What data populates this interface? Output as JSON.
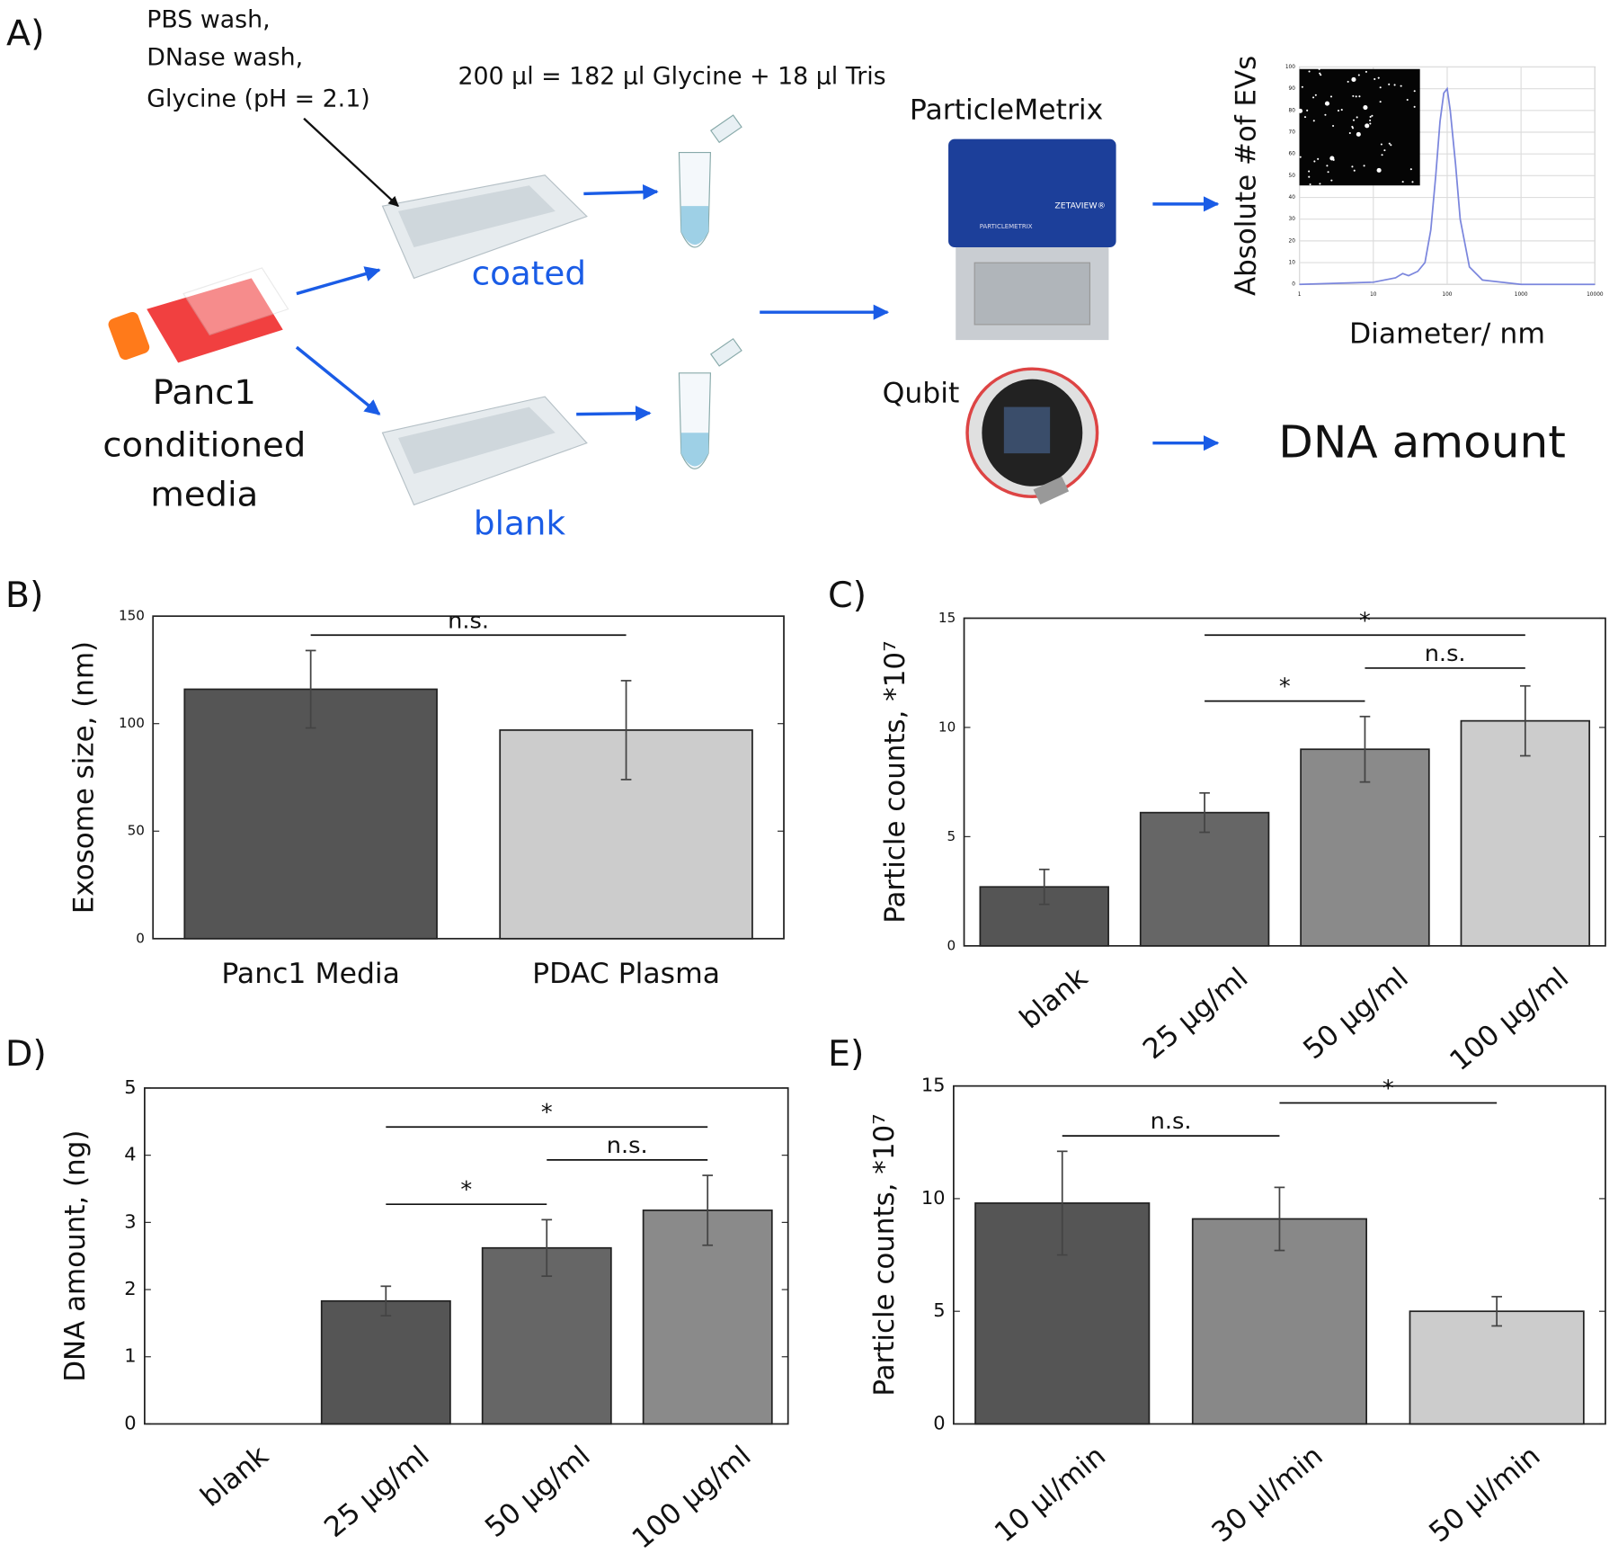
{
  "panel_a": {
    "label": "A)",
    "wash_steps": [
      "PBS wash,",
      "DNase wash,",
      "Glycine (pH = 2.1)"
    ],
    "elution": "200 µl = 182 µl Glycine + 18 µl Tris",
    "instrument": "ParticleMetrix",
    "instrument_brand": "ZETAVIEW®",
    "instrument_maker": "PARTICLEMETRIX",
    "coated": "coated",
    "blank": "blank",
    "sample": [
      "Panc1",
      "conditioned",
      "media"
    ],
    "qubit": "Qubit",
    "output": "DNA amount"
  },
  "chart_data": [
    {
      "type": "line",
      "xscale": "log",
      "xlabel": "Diameter/ nm",
      "ylabel": "Absolute #of EVs",
      "x": [
        1,
        10,
        20,
        25,
        30,
        40,
        50,
        60,
        70,
        80,
        90,
        100,
        110,
        130,
        150,
        200,
        300,
        1000,
        10000
      ],
      "values": [
        0,
        1,
        3,
        5,
        4,
        6,
        10,
        25,
        50,
        75,
        88,
        90,
        80,
        55,
        30,
        8,
        2,
        0,
        0
      ],
      "color": "#7b86dd",
      "xlim": [
        1,
        10000
      ],
      "xticks": [
        1,
        10,
        100,
        1000,
        10000
      ],
      "ylim": [
        0,
        100
      ],
      "yticks": [
        0,
        10,
        20,
        30,
        40,
        50,
        60,
        70,
        80,
        90,
        100
      ],
      "grid": true
    },
    {
      "type": "bar",
      "panel": "B)",
      "ylabel": "Exosome size, (nm)",
      "categories": [
        "Panc1 Media",
        "PDAC Plasma"
      ],
      "values": [
        116,
        97
      ],
      "errors": [
        18,
        23
      ],
      "colors": [
        "#555555",
        "#cccccc"
      ],
      "ylim": [
        0,
        150
      ],
      "yticks": [
        0,
        50,
        100,
        150
      ],
      "brackets": [
        {
          "pair": [
            0,
            1
          ],
          "label": "n.s."
        }
      ]
    },
    {
      "type": "bar",
      "panel": "C)",
      "ylabel": "Particle counts, *10⁷",
      "categories": [
        "blank",
        "25 µg/ml",
        "50 µg/ml",
        "100 µg/ml"
      ],
      "values": [
        2.7,
        6.1,
        9.0,
        10.3
      ],
      "errors": [
        0.8,
        0.9,
        1.5,
        1.6
      ],
      "colors": [
        "#555555",
        "#666666",
        "#8a8a8a",
        "#cccccc"
      ],
      "ylim": [
        0,
        15
      ],
      "yticks": [
        0,
        5,
        10,
        15
      ],
      "brackets": [
        {
          "pair": [
            1,
            2
          ],
          "label": "*"
        },
        {
          "pair": [
            2,
            3
          ],
          "label": "n.s."
        },
        {
          "pair": [
            1,
            3
          ],
          "label": "*"
        }
      ]
    },
    {
      "type": "bar",
      "panel": "D)",
      "ylabel": "DNA amount, (ng)",
      "categories": [
        "blank",
        "25 µg/ml",
        "50 µg/ml",
        "100 µg/ml"
      ],
      "values": [
        0,
        1.83,
        2.62,
        3.18
      ],
      "errors": [
        null,
        0.22,
        0.42,
        0.52
      ],
      "colors": [
        "#555555",
        "#555555",
        "#666666",
        "#8a8a8a"
      ],
      "ylim": [
        0,
        5
      ],
      "yticks": [
        0,
        1,
        2,
        3,
        4,
        5
      ],
      "brackets": [
        {
          "pair": [
            1,
            2
          ],
          "label": "*"
        },
        {
          "pair": [
            2,
            3
          ],
          "label": "n.s."
        },
        {
          "pair": [
            1,
            3
          ],
          "label": "*"
        }
      ]
    },
    {
      "type": "bar",
      "panel": "E)",
      "ylabel": "Particle counts, *10⁷",
      "categories": [
        "10 µl/min",
        "30 µl/min",
        "50 µl/min"
      ],
      "values": [
        9.8,
        9.1,
        5.0
      ],
      "errors": [
        2.3,
        1.4,
        0.65
      ],
      "colors": [
        "#555555",
        "#888888",
        "#cccccc"
      ],
      "ylim": [
        0,
        15
      ],
      "yticks": [
        0,
        5,
        10,
        15
      ],
      "brackets": [
        {
          "pair": [
            0,
            1
          ],
          "label": "n.s."
        },
        {
          "pair": [
            1,
            2
          ],
          "label": "*"
        }
      ]
    }
  ]
}
